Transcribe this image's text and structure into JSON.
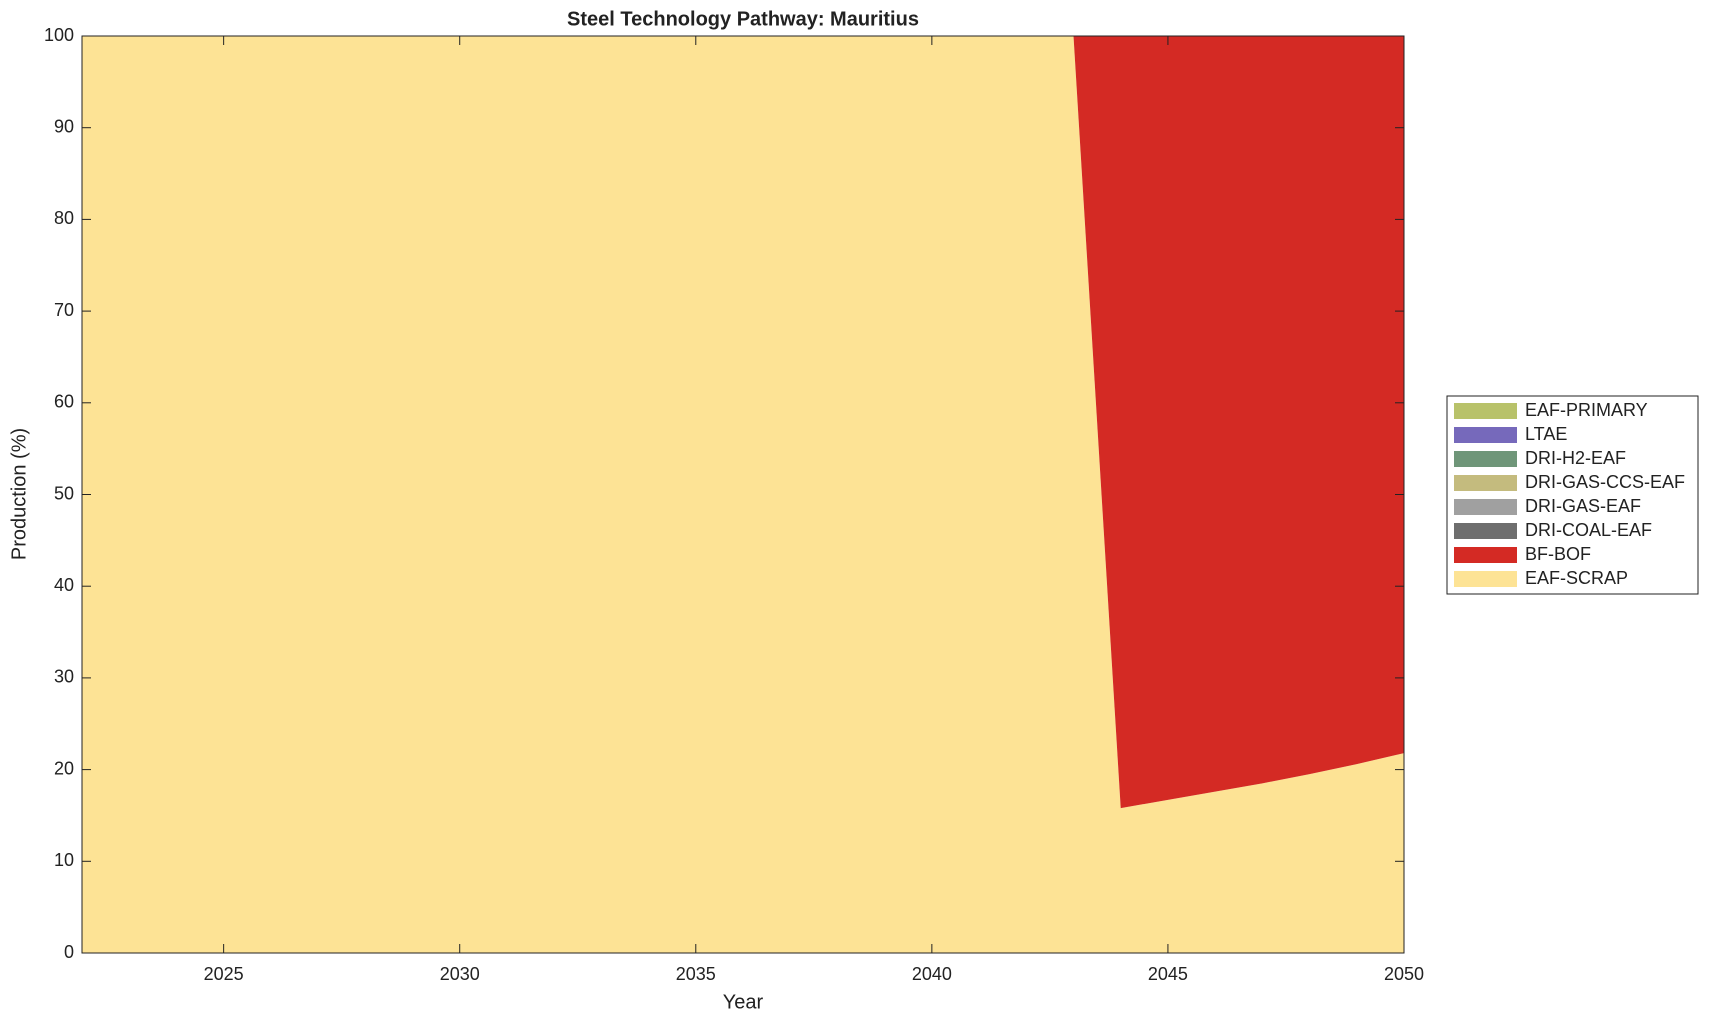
{
  "chart_data": {
    "type": "stacked_area",
    "title": "Steel Technology Pathway: Mauritius",
    "x_label": "Year",
    "y_label": "Production (%)",
    "x": [
      2022,
      2023,
      2024,
      2025,
      2026,
      2027,
      2028,
      2029,
      2030,
      2031,
      2032,
      2033,
      2034,
      2035,
      2036,
      2037,
      2038,
      2039,
      2040,
      2041,
      2042,
      2043,
      2044,
      2045,
      2046,
      2047,
      2048,
      2049,
      2050
    ],
    "series": [
      {
        "name": "EAF-SCRAP",
        "color": "#fde395",
        "values": [
          100,
          100,
          100,
          100,
          100,
          100,
          100,
          100,
          100,
          100,
          100,
          100,
          100,
          100,
          100,
          100,
          100,
          100,
          100,
          100,
          100,
          100,
          15.8,
          16.7,
          17.6,
          18.5,
          19.5,
          20.6,
          21.8
        ]
      },
      {
        "name": "BF-BOF",
        "color": "#d42a24",
        "values": [
          0,
          0,
          0,
          0,
          0,
          0,
          0,
          0,
          0,
          0,
          0,
          0,
          0,
          0,
          0,
          0,
          0,
          0,
          0,
          0,
          0,
          0,
          84.2,
          83.3,
          82.4,
          81.5,
          80.5,
          79.4,
          78.2
        ]
      },
      {
        "name": "DRI-COAL-EAF",
        "color": "#6e6e6e",
        "values": [
          0,
          0,
          0,
          0,
          0,
          0,
          0,
          0,
          0,
          0,
          0,
          0,
          0,
          0,
          0,
          0,
          0,
          0,
          0,
          0,
          0,
          0,
          0,
          0,
          0,
          0,
          0,
          0,
          0
        ]
      },
      {
        "name": "DRI-GAS-EAF",
        "color": "#a0a0a0",
        "values": [
          0,
          0,
          0,
          0,
          0,
          0,
          0,
          0,
          0,
          0,
          0,
          0,
          0,
          0,
          0,
          0,
          0,
          0,
          0,
          0,
          0,
          0,
          0,
          0,
          0,
          0,
          0,
          0,
          0
        ]
      },
      {
        "name": "DRI-GAS-CCS-EAF",
        "color": "#c4bb7e",
        "values": [
          0,
          0,
          0,
          0,
          0,
          0,
          0,
          0,
          0,
          0,
          0,
          0,
          0,
          0,
          0,
          0,
          0,
          0,
          0,
          0,
          0,
          0,
          0,
          0,
          0,
          0,
          0,
          0,
          0
        ]
      },
      {
        "name": "DRI-H2-EAF",
        "color": "#6f9679",
        "values": [
          0,
          0,
          0,
          0,
          0,
          0,
          0,
          0,
          0,
          0,
          0,
          0,
          0,
          0,
          0,
          0,
          0,
          0,
          0,
          0,
          0,
          0,
          0,
          0,
          0,
          0,
          0,
          0,
          0
        ]
      },
      {
        "name": "LTAE",
        "color": "#7669bb",
        "values": [
          0,
          0,
          0,
          0,
          0,
          0,
          0,
          0,
          0,
          0,
          0,
          0,
          0,
          0,
          0,
          0,
          0,
          0,
          0,
          0,
          0,
          0,
          0,
          0,
          0,
          0,
          0,
          0,
          0
        ]
      },
      {
        "name": "EAF-PRIMARY",
        "color": "#b8c26a",
        "values": [
          0,
          0,
          0,
          0,
          0,
          0,
          0,
          0,
          0,
          0,
          0,
          0,
          0,
          0,
          0,
          0,
          0,
          0,
          0,
          0,
          0,
          0,
          0,
          0,
          0,
          0,
          0,
          0,
          0
        ]
      }
    ],
    "xlim": [
      2022,
      2050
    ],
    "xticks": [
      2025,
      2030,
      2035,
      2040,
      2045,
      2050
    ],
    "ylim": [
      0,
      100
    ],
    "yticks": [
      0,
      10,
      20,
      30,
      40,
      50,
      60,
      70,
      80,
      90,
      100
    ]
  }
}
